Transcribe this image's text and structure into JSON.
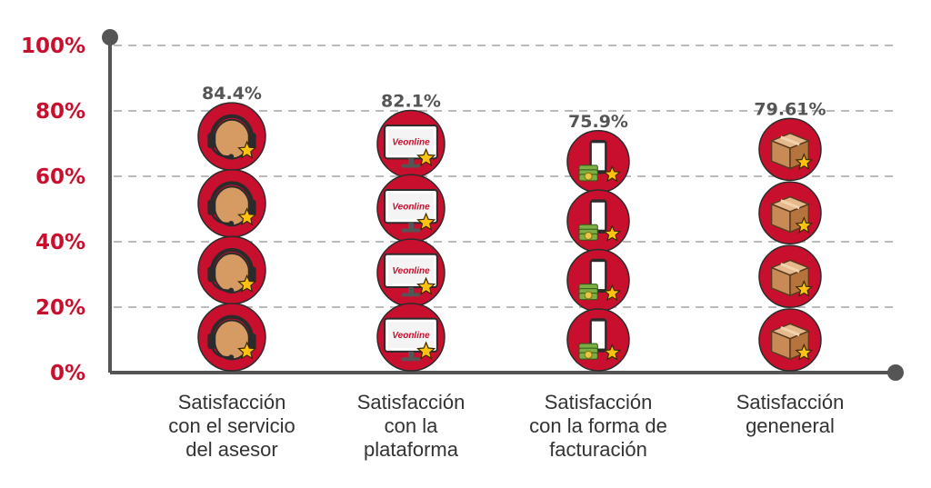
{
  "chart_data": {
    "type": "bar",
    "style": "pictograph",
    "categories": [
      [
        "Satisfacción",
        "con el servicio",
        "del asesor"
      ],
      [
        "Satisfacción",
        "con la",
        "plataforma"
      ],
      [
        "Satisfacción",
        "con la forma de",
        "facturación"
      ],
      [
        "Satisfacción",
        "geneneral"
      ]
    ],
    "values": [
      84.4,
      82.1,
      75.9,
      79.61
    ],
    "value_labels": [
      "84.4%",
      "82.1%",
      "75.9%",
      "79.61%"
    ],
    "icons": [
      "headset-icon",
      "veonline-monitor-icon",
      "phone-money-icon",
      "box-icon"
    ],
    "icon_brand_text": "Veonline",
    "y_ticks": [
      "0%",
      "20%",
      "40%",
      "60%",
      "80%",
      "100%"
    ],
    "ylim": [
      0,
      100
    ],
    "grid": true,
    "colors": {
      "axis_label": "#c8102e",
      "circle": "#c8102e",
      "value_label": "#555555",
      "category_label": "#333333",
      "axis": "#555555",
      "grid": "#bbbbbb",
      "star": "#ffc20e"
    }
  }
}
